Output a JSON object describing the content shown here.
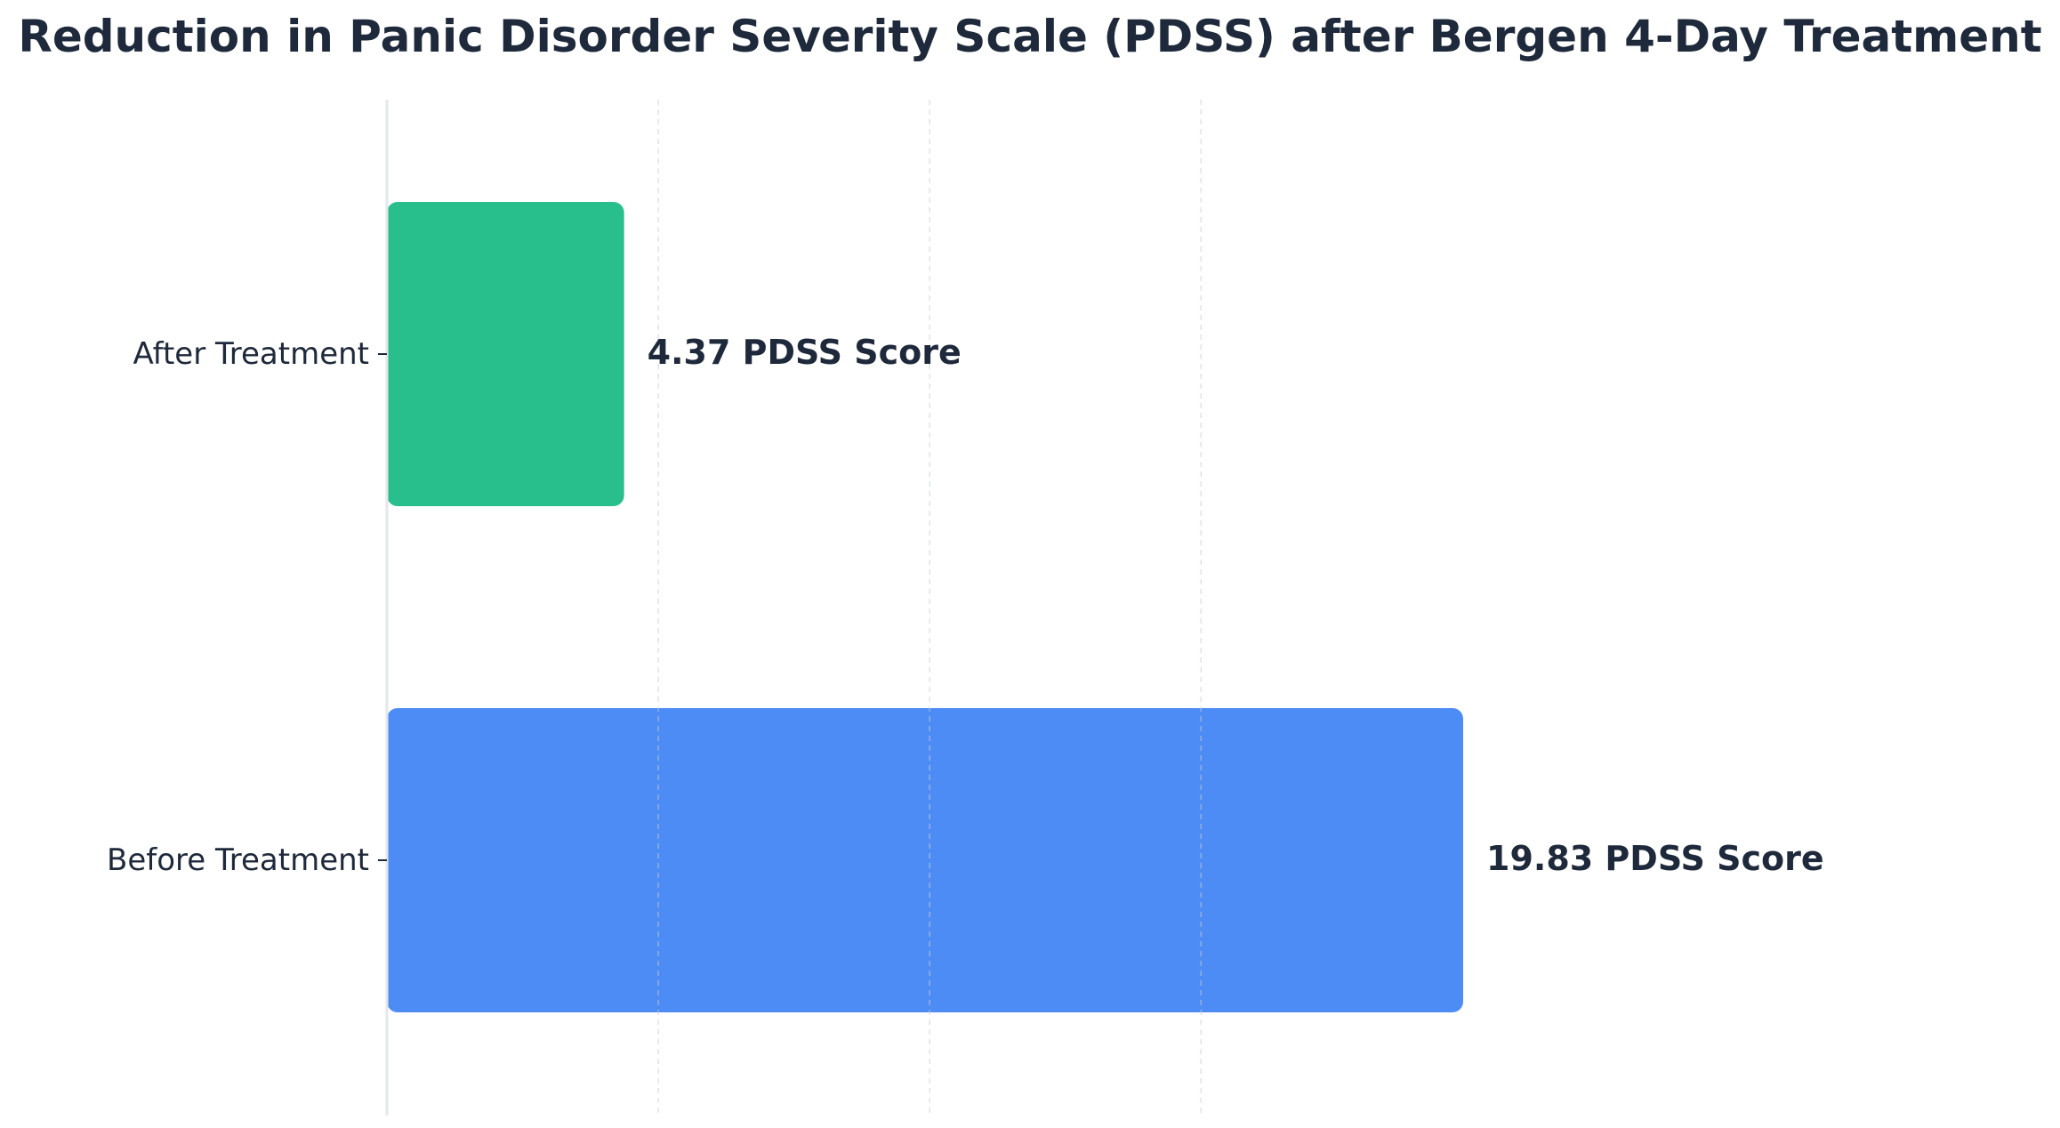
{
  "chart_data": {
    "type": "bar",
    "orientation": "horizontal",
    "title": "Reduction in Panic Disorder Severity Scale (PDSS) after Bergen 4-Day Treatment",
    "categories": [
      "Before Treatment",
      "After Treatment"
    ],
    "values": [
      19.83,
      4.37
    ],
    "value_labels": [
      "19.83 PDSS Score",
      "4.37 PDSS Score"
    ],
    "colors": [
      "#4e8cf5",
      "#28bf8d"
    ],
    "xlim": [
      0,
      30
    ],
    "x_gridlines": [
      5,
      10,
      15
    ],
    "grid": true,
    "xlabel": "",
    "ylabel": ""
  }
}
